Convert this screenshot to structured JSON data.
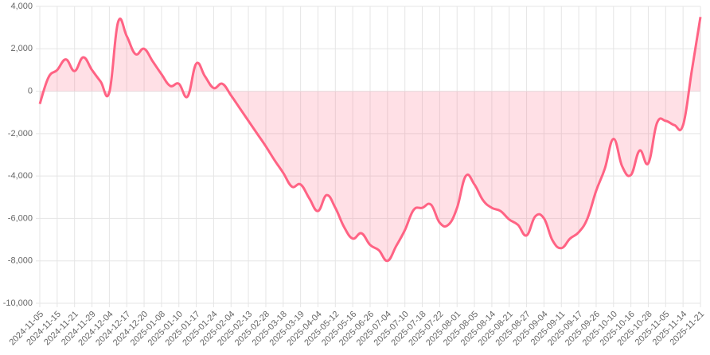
{
  "chart_data": {
    "type": "line",
    "categories": [
      "2024-11-05",
      null,
      "2024-11-15",
      null,
      "2024-11-21",
      null,
      "2024-11-29",
      null,
      "2024-12-04",
      null,
      "2024-12-17",
      null,
      "2024-12-20",
      null,
      "2025-01-08",
      null,
      "2025-01-10",
      null,
      "2025-01-17",
      null,
      "2025-01-24",
      null,
      "2025-02-04",
      null,
      "2025-02-13",
      null,
      "2025-02-28",
      null,
      "2025-03-18",
      null,
      "2025-03-19",
      null,
      "2025-04-04",
      null,
      "2025-05-12",
      null,
      "2025-05-16",
      null,
      "2025-06-26",
      null,
      "2025-07-04",
      null,
      "2025-07-10",
      null,
      "2025-07-18",
      null,
      "2025-07-22",
      null,
      "2025-08-01",
      null,
      "2025-08-05",
      null,
      "2025-08-14",
      null,
      "2025-08-21",
      null,
      "2025-08-27",
      null,
      "2025-09-04",
      null,
      "2025-09-11",
      null,
      "2025-09-17",
      null,
      "2025-09-26",
      null,
      "2025-10-10",
      null,
      "2025-10-16",
      null,
      "2025-10-28",
      null,
      "2025-11-05",
      null,
      "2025-11-14",
      null,
      "2025-11-21"
    ],
    "series": [
      {
        "color": "#ff6384",
        "fill": "rgba(255,99,132,0.2)",
        "values": [
          -600,
          650,
          1000,
          1500,
          950,
          1600,
          1000,
          450,
          -50,
          3250,
          2600,
          1750,
          2000,
          1400,
          800,
          250,
          350,
          -250,
          1300,
          700,
          150,
          350,
          -200,
          -800,
          -1400,
          -2000,
          -2600,
          -3250,
          -3850,
          -4500,
          -4400,
          -5050,
          -5650,
          -4900,
          -5500,
          -6400,
          -6950,
          -6700,
          -7250,
          -7500,
          -8000,
          -7300,
          -6550,
          -5600,
          -5500,
          -5350,
          -6200,
          -6300,
          -5500,
          -4000,
          -4400,
          -5150,
          -5500,
          -5650,
          -6050,
          -6300,
          -6800,
          -5900,
          -6000,
          -7050,
          -7400,
          -6950,
          -6650,
          -6000,
          -4700,
          -3650,
          -2250,
          -3550,
          -3950,
          -2800,
          -3400,
          -1500,
          -1400,
          -1600,
          -1600,
          950,
          3500
        ]
      }
    ],
    "ylim": [
      -10000,
      4000
    ],
    "yticks": [
      {
        "value": 4000,
        "label": "4,000"
      },
      {
        "value": 2000,
        "label": "2,000"
      },
      0,
      {
        "value": -2000,
        "label": "-2,000"
      },
      {
        "value": -4000,
        "label": "-4,000"
      },
      {
        "value": -6000,
        "label": "-6,000"
      },
      {
        "value": -8000,
        "label": "-8,000"
      },
      {
        "value": -10000,
        "label": "-10,000"
      }
    ],
    "grid": true
  }
}
